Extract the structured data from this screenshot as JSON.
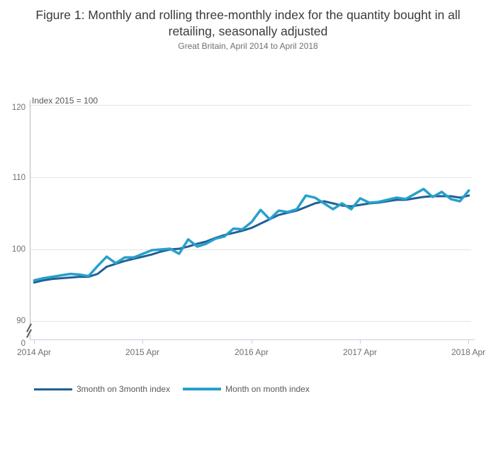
{
  "figure": {
    "title": "Figure 1: Monthly and rolling three-monthly index for the quantity bought in all retailing, seasonally adjusted",
    "subtitle": "Great Britain, April 2014 to April 2018"
  },
  "chart": {
    "axis_note": "Index 2015 = 100",
    "y_ticks": [
      "120",
      "110",
      "100",
      "90",
      "0"
    ],
    "x_ticks": [
      "2014 Apr",
      "2015 Apr",
      "2016 Apr",
      "2017 Apr",
      "2018 Apr"
    ]
  },
  "legend": {
    "items": [
      {
        "label": "3month on 3month index",
        "color": "#206095"
      },
      {
        "label": "Month on month index",
        "color": "#27a0cc"
      }
    ]
  },
  "chart_data": {
    "type": "line",
    "title": "Figure 1: Monthly and rolling three-monthly index for the quantity bought in all retailing, seasonally adjusted",
    "subtitle": "Great Britain, April 2014 to April 2018",
    "ylabel": "Index 2015 = 100",
    "x_unit": "month",
    "x_range": [
      "2014 Apr",
      "2018 Apr"
    ],
    "x_tick_labels": [
      "2014 Apr",
      "2015 Apr",
      "2016 Apr",
      "2017 Apr",
      "2018 Apr"
    ],
    "y_axis": {
      "ticks": [
        0,
        90,
        100,
        110,
        120
      ],
      "axis_break_between": [
        0,
        90
      ]
    },
    "grid": "horizontal",
    "legend_position": "bottom-left",
    "series": [
      {
        "name": "3month on 3month index",
        "color": "#206095",
        "stroke_width": 3,
        "values": [
          95.4,
          95.7,
          95.9,
          96.0,
          96.1,
          96.2,
          96.2,
          96.6,
          97.6,
          98.0,
          98.4,
          98.7,
          99.0,
          99.3,
          99.7,
          100.0,
          100.1,
          100.4,
          100.8,
          101.1,
          101.6,
          102.0,
          102.3,
          102.6,
          103.0,
          103.6,
          104.2,
          104.8,
          105.1,
          105.4,
          105.9,
          106.4,
          106.7,
          106.4,
          106.1,
          106.0,
          106.2,
          106.4,
          106.5,
          106.7,
          106.9,
          106.9,
          107.1,
          107.3,
          107.4,
          107.4,
          107.4,
          107.2,
          107.5
        ]
      },
      {
        "name": "Month on month index",
        "color": "#27a0cc",
        "stroke_width": 3.5,
        "values": [
          95.7,
          96.0,
          96.2,
          96.4,
          96.6,
          96.5,
          96.3,
          97.7,
          99.0,
          98.1,
          98.9,
          98.9,
          99.4,
          99.9,
          100.0,
          100.1,
          99.4,
          101.4,
          100.4,
          100.8,
          101.5,
          101.8,
          102.9,
          102.8,
          103.8,
          105.5,
          104.2,
          105.4,
          105.2,
          105.6,
          107.5,
          107.2,
          106.4,
          105.6,
          106.4,
          105.6,
          107.1,
          106.5,
          106.6,
          106.9,
          107.2,
          107.0,
          107.7,
          108.4,
          107.3,
          108.0,
          107.0,
          106.7,
          108.2
        ]
      }
    ]
  }
}
